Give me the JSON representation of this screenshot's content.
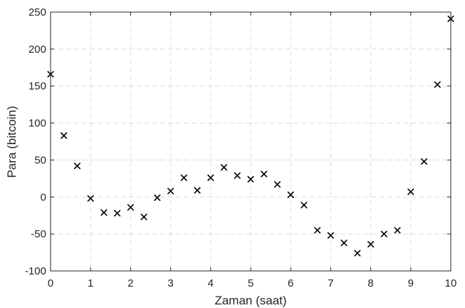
{
  "chart_data": {
    "type": "scatter",
    "xlabel": "Zaman (saat)",
    "ylabel": "Para (bitcoin)",
    "xlim": [
      0,
      10
    ],
    "ylim": [
      -100,
      250
    ],
    "xticks": [
      "0",
      "1",
      "2",
      "3",
      "4",
      "5",
      "6",
      "7",
      "8",
      "9",
      "10"
    ],
    "yticks": [
      "-100",
      "-50",
      "0",
      "50",
      "100",
      "150",
      "200",
      "250"
    ],
    "grid": true,
    "marker": "x",
    "marker_color": "#000000",
    "series": [
      {
        "x": [
          0,
          0.333,
          0.667,
          1,
          1.333,
          1.667,
          2,
          2.333,
          2.667,
          3,
          3.333,
          3.667,
          4,
          4.333,
          4.667,
          5,
          5.333,
          5.667,
          6,
          6.333,
          6.667,
          7,
          7.333,
          7.667,
          8,
          8.333,
          8.667,
          9,
          9.333,
          9.667,
          10
        ],
        "y": [
          166,
          83,
          42,
          -2,
          -21,
          -22,
          -14,
          -27,
          -1,
          8,
          26,
          9,
          26,
          40,
          29,
          24,
          31,
          17,
          3,
          -11,
          -45,
          -52,
          -62,
          -76,
          -64,
          -50,
          -45,
          7,
          48,
          152,
          241
        ]
      }
    ]
  }
}
